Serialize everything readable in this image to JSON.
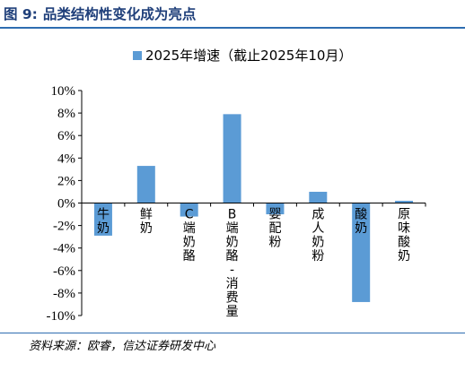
{
  "figure": {
    "number": "图 9:",
    "title": "品类结构性变化成为亮点",
    "source": "资料来源：欧睿，信达证券研发中心"
  },
  "colors": {
    "bar": "#5b9bd5",
    "title": "#1f3f7a",
    "rule": "#2e6db1",
    "axis": "#000000"
  },
  "chart_data": {
    "type": "bar",
    "categories": [
      "牛奶",
      "鲜奶",
      "C端奶酪",
      "B端奶酪-消费量",
      "婴配粉",
      "成人奶粉",
      "酸奶",
      "原味酸奶"
    ],
    "series": [
      {
        "name": "2025年增速（截止2025年10月）",
        "values": [
          -2.9,
          3.3,
          -1.2,
          7.9,
          -1.0,
          1.0,
          -8.8,
          0.2
        ]
      }
    ],
    "ylim": [
      -10,
      10
    ],
    "yticks": [
      -10,
      -8,
      -6,
      -4,
      -2,
      0,
      2,
      4,
      6,
      8,
      10
    ],
    "ytick_labels": [
      "-10%",
      "-8%",
      "-6%",
      "-4%",
      "-2%",
      "0%",
      "2%",
      "4%",
      "6%",
      "8%",
      "10%"
    ],
    "legend_position": "top-center",
    "grid": false,
    "xlabel": "",
    "ylabel": ""
  }
}
